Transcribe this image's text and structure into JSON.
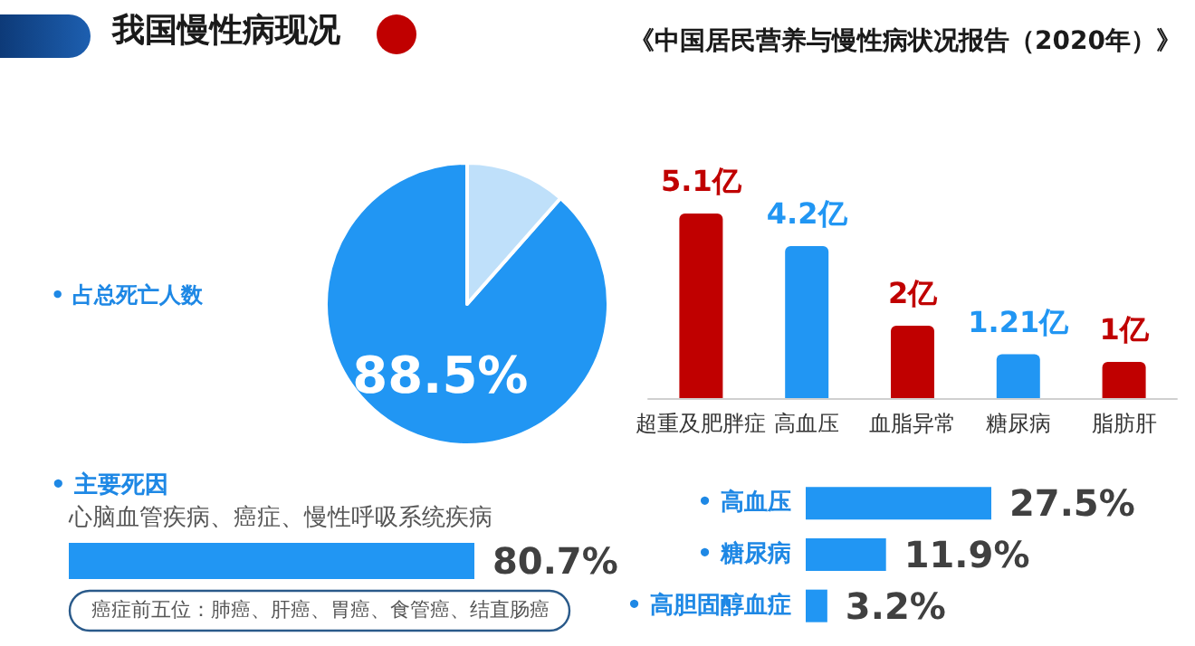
{
  "chart_data": [
    {
      "type": "pie",
      "title": "我国慢性病现况",
      "categories": [
        "• 占总死亡人数",
        null
      ],
      "values": [
        88.5,
        11.5
      ],
      "colors": [
        "#2196f3",
        "#bfe0fa"
      ],
      "value_labels": [
        "88.5%",
        null
      ]
    },
    {
      "type": "bar",
      "title": "《中国居民营养与慢性病状况报告（2020年）》",
      "categories": [
        "超重及肥胖症",
        "高血压",
        "血脂异常",
        "糖尿病",
        "脂肪肝"
      ],
      "values": [
        5.1,
        4.2,
        2,
        1.21,
        1
      ],
      "colors": [
        "#c00000",
        "#2196f3",
        "#c00000",
        "#2196f3",
        "#c00000"
      ],
      "value_labels": [
        "5.1亿",
        "4.2亿",
        "2亿",
        "1.21亿",
        "1亿"
      ],
      "tick_labels": "x"
    },
    {
      "type": "bar",
      "orientation": "horizontal",
      "title": "• 主要死因",
      "categories": [
        "心脑血管疾病、癌症、慢性呼吸系统疾病"
      ],
      "values": [
        80.7
      ],
      "colors": [
        "#2196f3"
      ],
      "value_labels": [
        "80.7%"
      ],
      "tick_labels": "y",
      "annotations": [
        "癌症前五位：肺癌、肝癌、胃癌、食管癌、结直肠癌"
      ]
    },
    {
      "type": "bar",
      "orientation": "horizontal",
      "categories": [
        "• 高血压",
        "• 糖尿病",
        "• 高胆固醇血症"
      ],
      "values": [
        27.5,
        11.9,
        3.2
      ],
      "colors": [
        "#2196f3",
        "#2196f3",
        "#2196f3"
      ],
      "value_labels": [
        "27.5%",
        "11.9%",
        "3.2%"
      ],
      "tick_labels": "y"
    }
  ]
}
